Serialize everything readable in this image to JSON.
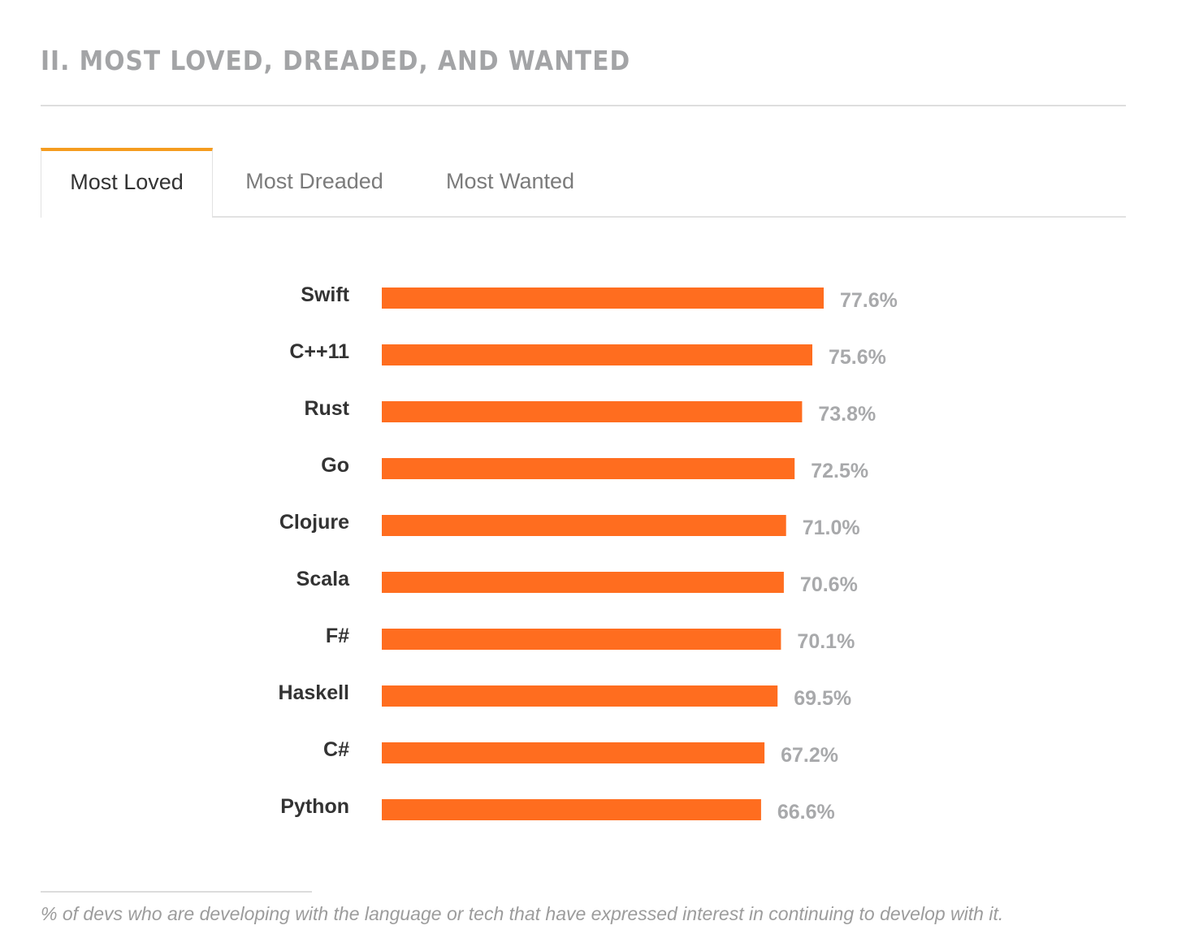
{
  "section": {
    "title": "II. MOST LOVED, DREADED, AND WANTED"
  },
  "tabs": [
    {
      "label": "Most Loved",
      "active": true
    },
    {
      "label": "Most Dreaded",
      "active": false
    },
    {
      "label": "Most Wanted",
      "active": false
    }
  ],
  "colors": {
    "bar": "#ff6d1f",
    "active_tab_accent": "#f59c1f",
    "category_label": "#333333",
    "value_label": "#a8a9ab"
  },
  "chart_data": {
    "type": "bar",
    "orientation": "horizontal",
    "title": "",
    "xlabel": "",
    "ylabel": "",
    "value_suffix": "%",
    "categories": [
      "Swift",
      "C++11",
      "Rust",
      "Go",
      "Clojure",
      "Scala",
      "F#",
      "Haskell",
      "C#",
      "Python"
    ],
    "values": [
      77.6,
      75.6,
      73.8,
      72.5,
      71.0,
      70.6,
      70.1,
      69.5,
      67.2,
      66.6
    ],
    "value_labels": [
      "77.6%",
      "75.6%",
      "73.8%",
      "72.5%",
      "71.0%",
      "70.6%",
      "70.1%",
      "69.5%",
      "67.2%",
      "66.6%"
    ],
    "xlim": [
      0,
      77.6
    ],
    "grid": false,
    "legend": "none"
  },
  "footnote": {
    "text": "% of devs who are developing with the language or tech that have expressed interest in continuing to develop with it."
  }
}
